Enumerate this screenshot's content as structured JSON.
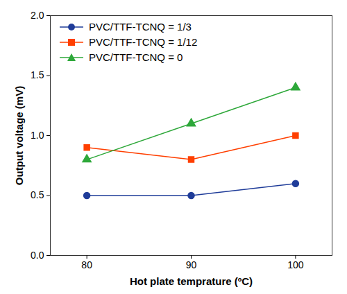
{
  "chart_data": {
    "type": "line",
    "x_label": "Hot plate temprature (ºC)",
    "y_label": "Output voltage (mV)",
    "x": [
      80,
      90,
      100
    ],
    "series": [
      {
        "name": "PVC/TTF-TCNQ = 1/3",
        "color": "#1f3c99",
        "marker": "circle",
        "values": [
          0.5,
          0.5,
          0.6
        ]
      },
      {
        "name": "PVC/TTF-TCNQ = 1/12",
        "color": "#ff3f00",
        "marker": "square",
        "values": [
          0.9,
          0.8,
          1.0
        ]
      },
      {
        "name": "PVC/TTF-TCNQ = 0",
        "color": "#2ea83a",
        "marker": "triangle",
        "values": [
          0.8,
          1.1,
          1.4
        ]
      }
    ],
    "xlim": [
      76.5,
      103.5
    ],
    "xticks": [
      80,
      90,
      100
    ],
    "ylim": [
      0,
      2
    ],
    "yticks": [
      0,
      0.5,
      1,
      1.5,
      2
    ],
    "grid": false,
    "legend": "upper left"
  }
}
